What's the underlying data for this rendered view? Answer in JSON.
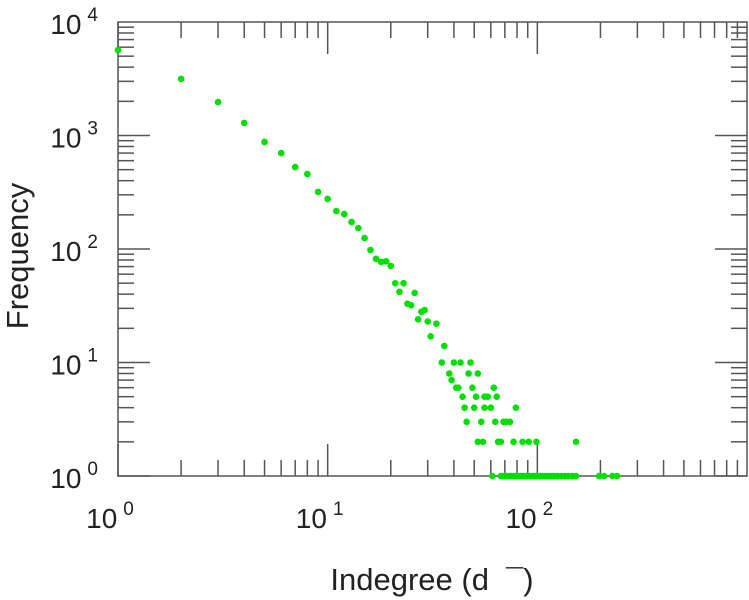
{
  "chart_data": {
    "type": "scatter",
    "title": "",
    "xlabel": "Indegree (d  ¯)",
    "ylabel": "Frequency",
    "xscale": "log",
    "yscale": "log",
    "xlim": [
      1,
      1000
    ],
    "ylim": [
      1,
      10000
    ],
    "grid": false,
    "marker_color": "#00e000",
    "axis_color": "#555555",
    "x_ticks": [
      {
        "base": "10",
        "exp": "0",
        "value": 1
      },
      {
        "base": "10",
        "exp": "1",
        "value": 10
      },
      {
        "base": "10",
        "exp": "2",
        "value": 100
      }
    ],
    "y_ticks": [
      {
        "base": "10",
        "exp": "0",
        "value": 1
      },
      {
        "base": "10",
        "exp": "1",
        "value": 10
      },
      {
        "base": "10",
        "exp": "2",
        "value": 100
      },
      {
        "base": "10",
        "exp": "3",
        "value": 1000
      },
      {
        "base": "10",
        "exp": "4",
        "value": 10000
      }
    ],
    "points": [
      [
        1,
        5660
      ],
      [
        2,
        3150
      ],
      [
        3,
        1970
      ],
      [
        4,
        1290
      ],
      [
        5,
        877
      ],
      [
        6,
        701
      ],
      [
        7,
        527
      ],
      [
        8,
        458
      ],
      [
        9,
        318
      ],
      [
        10,
        276
      ],
      [
        11,
        216
      ],
      [
        12,
        203
      ],
      [
        13,
        173
      ],
      [
        14,
        153
      ],
      [
        15,
        125
      ],
      [
        16,
        98
      ],
      [
        17,
        82
      ],
      [
        18,
        77
      ],
      [
        19,
        78
      ],
      [
        20,
        71
      ],
      [
        21,
        50
      ],
      [
        22,
        42
      ],
      [
        23,
        50
      ],
      [
        24,
        33
      ],
      [
        25,
        32
      ],
      [
        26,
        41
      ],
      [
        27,
        24
      ],
      [
        28,
        28
      ],
      [
        29,
        29
      ],
      [
        30,
        23
      ],
      [
        31,
        17
      ],
      [
        33,
        22
      ],
      [
        36,
        14
      ],
      [
        35,
        10
      ],
      [
        40,
        10
      ],
      [
        43,
        10
      ],
      [
        48,
        10
      ],
      [
        38,
        8
      ],
      [
        47,
        8
      ],
      [
        52,
        8
      ],
      [
        39,
        7
      ],
      [
        41,
        6
      ],
      [
        42,
        6
      ],
      [
        49,
        6
      ],
      [
        62,
        6
      ],
      [
        44,
        5
      ],
      [
        51,
        5
      ],
      [
        56,
        5
      ],
      [
        58,
        5
      ],
      [
        64,
        5
      ],
      [
        45,
        4
      ],
      [
        50,
        4
      ],
      [
        56,
        4
      ],
      [
        60,
        4
      ],
      [
        79,
        4
      ],
      [
        46,
        3
      ],
      [
        54,
        3
      ],
      [
        63,
        3
      ],
      [
        69,
        3
      ],
      [
        71,
        3
      ],
      [
        74,
        3
      ],
      [
        52,
        2
      ],
      [
        55,
        2
      ],
      [
        65,
        2
      ],
      [
        67,
        2
      ],
      [
        77,
        2
      ],
      [
        85,
        2
      ],
      [
        91,
        2
      ],
      [
        99,
        2
      ],
      [
        153,
        2
      ],
      [
        61,
        1
      ],
      [
        67,
        1
      ],
      [
        69,
        1
      ],
      [
        70,
        1
      ],
      [
        72,
        1
      ],
      [
        74,
        1
      ],
      [
        75,
        1
      ],
      [
        77,
        1
      ],
      [
        79,
        1
      ],
      [
        80,
        1
      ],
      [
        82,
        1
      ],
      [
        84,
        1
      ],
      [
        86,
        1
      ],
      [
        88,
        1
      ],
      [
        90,
        1
      ],
      [
        92,
        1
      ],
      [
        94,
        1
      ],
      [
        96,
        1
      ],
      [
        98,
        1
      ],
      [
        100,
        1
      ],
      [
        103,
        1
      ],
      [
        106,
        1
      ],
      [
        109,
        1
      ],
      [
        112,
        1
      ],
      [
        115,
        1
      ],
      [
        118,
        1
      ],
      [
        121,
        1
      ],
      [
        125,
        1
      ],
      [
        130,
        1
      ],
      [
        135,
        1
      ],
      [
        140,
        1
      ],
      [
        147,
        1
      ],
      [
        153,
        1
      ],
      [
        197,
        1
      ],
      [
        208,
        1
      ],
      [
        228,
        1
      ],
      [
        240,
        1
      ]
    ]
  }
}
